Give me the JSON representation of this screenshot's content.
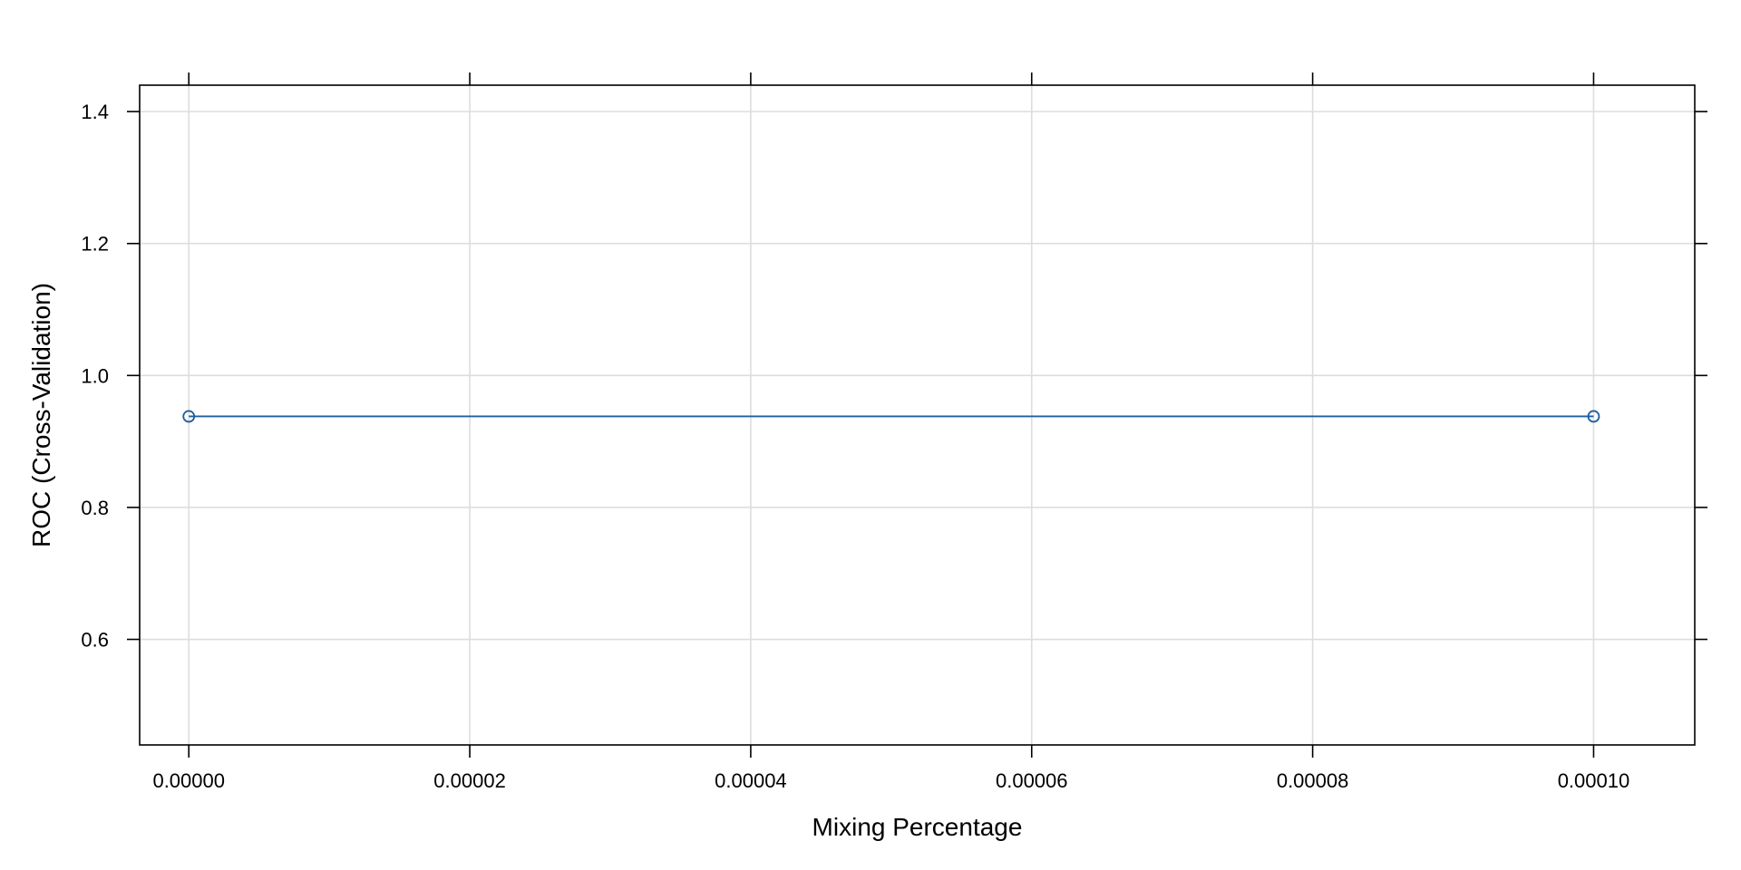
{
  "chart_data": {
    "type": "line",
    "title": "",
    "xlabel": "Mixing Percentage",
    "ylabel": "ROC (Cross-Validation)",
    "x": [
      0.0,
      0.0001
    ],
    "series": [
      {
        "values": [
          0.938,
          0.938
        ]
      }
    ],
    "xlim": [
      -3.5e-06,
      0.0001072
    ],
    "ylim": [
      0.44,
      1.44
    ],
    "x_ticks": [
      0.0,
      2e-05,
      4e-05,
      6e-05,
      8e-05,
      0.0001
    ],
    "x_tick_labels": [
      "0.00000",
      "0.00002",
      "0.00004",
      "0.00006",
      "0.00008",
      "0.00010"
    ],
    "y_ticks": [
      0.6,
      0.8,
      1.0,
      1.2,
      1.4
    ],
    "y_tick_labels": [
      "0.6",
      "0.8",
      "1.0",
      "1.2",
      "1.4"
    ],
    "grid": true,
    "colors": {
      "line": "#1f5f9e",
      "grid": "#dddddd",
      "frame": "#000000"
    }
  }
}
